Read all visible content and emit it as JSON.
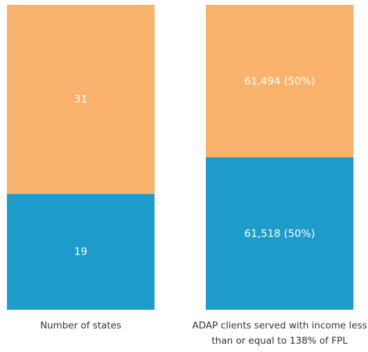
{
  "chart_data": {
    "type": "bar",
    "stacked": "percent",
    "categories": [
      "Number of states",
      "ADAP clients served with income less than or equal to 138% of FPL"
    ],
    "series": [
      {
        "color": "#1d9bcb",
        "values": [
          19,
          61518
        ],
        "value_labels": [
          "19",
          "61,518 (50%)"
        ]
      },
      {
        "color": "#f9b26b",
        "values": [
          31,
          61494
        ],
        "value_labels": [
          "31",
          "61,494 (50%)"
        ]
      }
    ]
  }
}
